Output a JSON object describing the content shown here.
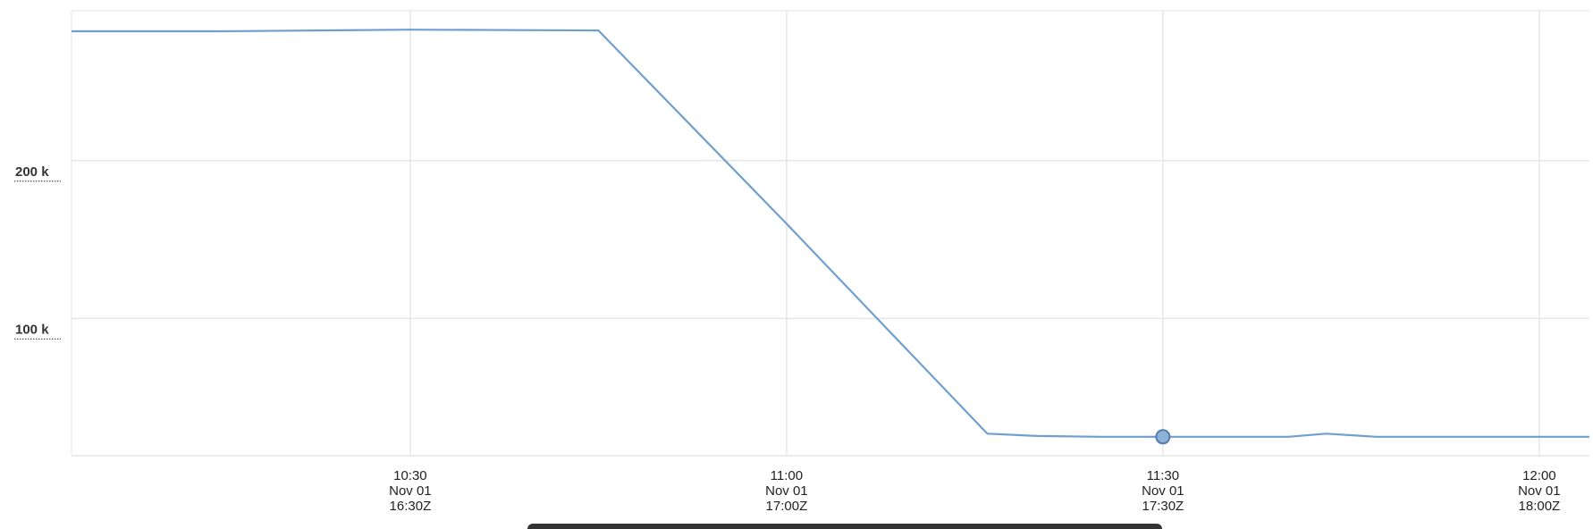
{
  "chart_data": {
    "type": "line",
    "title": "",
    "xlabel": "",
    "ylabel": "",
    "x_ticks": [
      {
        "time": "10:30",
        "lines": [
          "10:30",
          "Nov 01",
          "16:30Z"
        ]
      },
      {
        "time": "11:00",
        "lines": [
          "11:00",
          "Nov 01",
          "17:00Z"
        ]
      },
      {
        "time": "11:30",
        "lines": [
          "11:30",
          "Nov 01",
          "17:30Z"
        ]
      },
      {
        "time": "12:00",
        "lines": [
          "12:00",
          "Nov 01",
          "18:00Z"
        ]
      }
    ],
    "xlim": [
      "10:03",
      "12:04"
    ],
    "y_ticks": [
      {
        "value": 100000,
        "label": "100 k"
      },
      {
        "value": 200000,
        "label": "200 k"
      }
    ],
    "ylim": [
      13000,
      295000
    ],
    "grid": true,
    "legend": "none",
    "color": "#6f9fcf",
    "series": [
      {
        "x": [
          "10:03",
          "10:15",
          "10:30",
          "10:45",
          "11:00",
          "11:16",
          "11:20",
          "11:25",
          "11:30",
          "11:40",
          "11:43",
          "11:47",
          "12:04"
        ],
        "values": [
          282000,
          282000,
          283000,
          282500,
          160000,
          27000,
          25500,
          25000,
          25000,
          25000,
          27000,
          25000,
          25000
        ]
      }
    ],
    "highlight": {
      "x": "11:30",
      "value": 25000
    }
  }
}
